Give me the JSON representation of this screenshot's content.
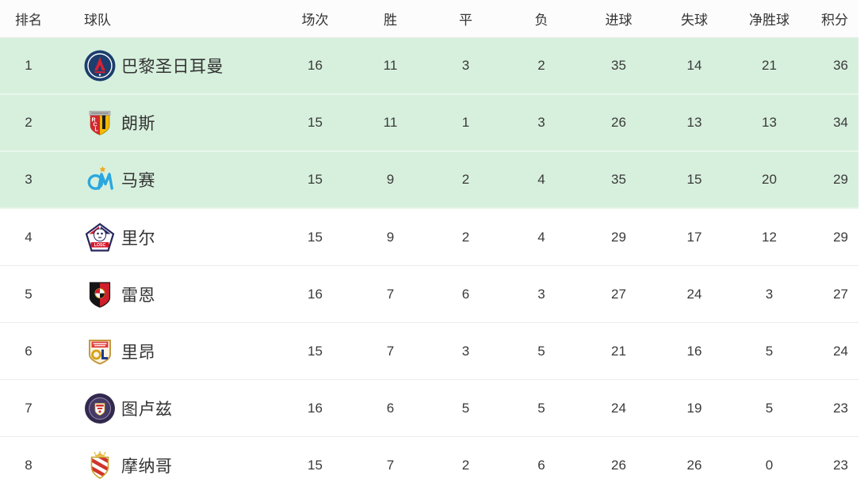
{
  "table": {
    "columns": [
      {
        "key": "rank",
        "label": "排名"
      },
      {
        "key": "team",
        "label": "球队"
      },
      {
        "key": "played",
        "label": "场次"
      },
      {
        "key": "win",
        "label": "胜"
      },
      {
        "key": "draw",
        "label": "平"
      },
      {
        "key": "loss",
        "label": "负"
      },
      {
        "key": "gf",
        "label": "进球"
      },
      {
        "key": "ga",
        "label": "失球"
      },
      {
        "key": "gd",
        "label": "净胜球"
      },
      {
        "key": "pts",
        "label": "积分"
      }
    ],
    "highlight_color": "#d7f0dd",
    "rows": [
      {
        "rank": "1",
        "team": "巴黎圣日耳曼",
        "logo": "psg-crest",
        "played": "16",
        "win": "11",
        "draw": "3",
        "loss": "2",
        "gf": "35",
        "ga": "14",
        "gd": "21",
        "pts": "36",
        "highlight": true
      },
      {
        "rank": "2",
        "team": "朗斯",
        "logo": "lens-crest",
        "played": "15",
        "win": "11",
        "draw": "1",
        "loss": "3",
        "gf": "26",
        "ga": "13",
        "gd": "13",
        "pts": "34",
        "highlight": true
      },
      {
        "rank": "3",
        "team": "马赛",
        "logo": "marseille-crest",
        "played": "15",
        "win": "9",
        "draw": "2",
        "loss": "4",
        "gf": "35",
        "ga": "15",
        "gd": "20",
        "pts": "29",
        "highlight": true
      },
      {
        "rank": "4",
        "team": "里尔",
        "logo": "lille-crest",
        "played": "15",
        "win": "9",
        "draw": "2",
        "loss": "4",
        "gf": "29",
        "ga": "17",
        "gd": "12",
        "pts": "29",
        "highlight": false
      },
      {
        "rank": "5",
        "team": "雷恩",
        "logo": "rennes-crest",
        "played": "16",
        "win": "7",
        "draw": "6",
        "loss": "3",
        "gf": "27",
        "ga": "24",
        "gd": "3",
        "pts": "27",
        "highlight": false
      },
      {
        "rank": "6",
        "team": "里昂",
        "logo": "lyon-crest",
        "played": "15",
        "win": "7",
        "draw": "3",
        "loss": "5",
        "gf": "21",
        "ga": "16",
        "gd": "5",
        "pts": "24",
        "highlight": false
      },
      {
        "rank": "7",
        "team": "图卢兹",
        "logo": "toulouse-crest",
        "played": "16",
        "win": "6",
        "draw": "5",
        "loss": "5",
        "gf": "24",
        "ga": "19",
        "gd": "5",
        "pts": "23",
        "highlight": false
      },
      {
        "rank": "8",
        "team": "摩纳哥",
        "logo": "monaco-crest",
        "played": "15",
        "win": "7",
        "draw": "2",
        "loss": "6",
        "gf": "26",
        "ga": "26",
        "gd": "0",
        "pts": "23",
        "highlight": false
      }
    ]
  }
}
